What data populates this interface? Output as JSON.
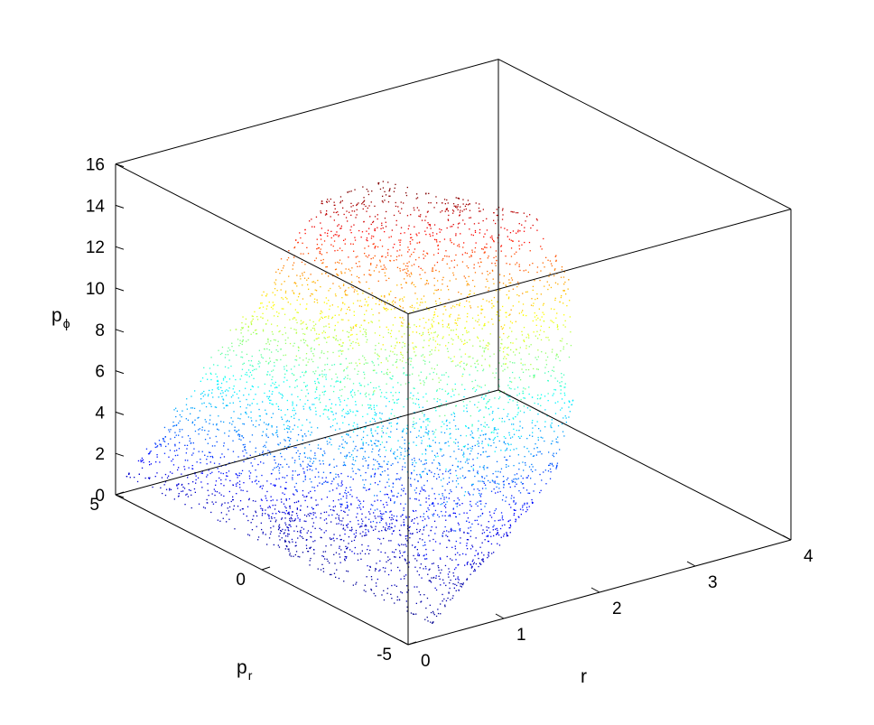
{
  "chart_data": {
    "type": "scatter",
    "title": "",
    "xlabel": "r",
    "ylabel": "p",
    "ylabel_subscript": "r",
    "zlabel": "p",
    "zlabel_subscript": "ϕ",
    "xlim": [
      0,
      4
    ],
    "ylim": [
      -5,
      5
    ],
    "zlim": [
      0,
      16
    ],
    "x_ticks": [
      "0",
      "1",
      "2",
      "3",
      "4"
    ],
    "y_ticks": [
      "-5",
      "0",
      "5"
    ],
    "z_ticks": [
      "0",
      "2",
      "4",
      "6",
      "8",
      "10",
      "12",
      "14",
      "16"
    ],
    "grid": false,
    "box": true,
    "colormap": "jet",
    "color_by": "z",
    "colors": {
      "jet_low": "#00008f",
      "jet_mid": "#7fff7f",
      "jet_high": "#800000",
      "frame": "#000000",
      "background": "#ffffff"
    },
    "series": [
      {
        "values_description_free": true,
        "surface_samples": [
          {
            "x": 0.05,
            "y": 4.8,
            "z": 1.0
          },
          {
            "x": 0.3,
            "y": 4.5,
            "z": 2.5
          },
          {
            "x": 0.8,
            "y": 4.2,
            "z": 5.0
          },
          {
            "x": 1.2,
            "y": 3.8,
            "z": 9.0
          },
          {
            "x": 1.6,
            "y": 3.2,
            "z": 13.5
          },
          {
            "x": 2.0,
            "y": 2.5,
            "z": 14.5
          },
          {
            "x": 2.5,
            "y": 1.5,
            "z": 13.5
          },
          {
            "x": 3.0,
            "y": 0.5,
            "z": 13.0
          },
          {
            "x": 3.2,
            "y": 0.0,
            "z": 10.0
          },
          {
            "x": 3.0,
            "y": -0.8,
            "z": 5.0
          },
          {
            "x": 2.6,
            "y": -1.5,
            "z": 2.5
          },
          {
            "x": 1.8,
            "y": -2.5,
            "z": 1.2
          },
          {
            "x": 1.0,
            "y": -3.5,
            "z": 0.5
          },
          {
            "x": 0.4,
            "y": -4.5,
            "z": 0.2
          },
          {
            "x": 0.3,
            "y": 0.0,
            "z": 0.3
          },
          {
            "x": 0.6,
            "y": 1.5,
            "z": 0.6
          },
          {
            "x": 1.2,
            "y": -0.5,
            "z": 0.9
          }
        ]
      }
    ]
  }
}
